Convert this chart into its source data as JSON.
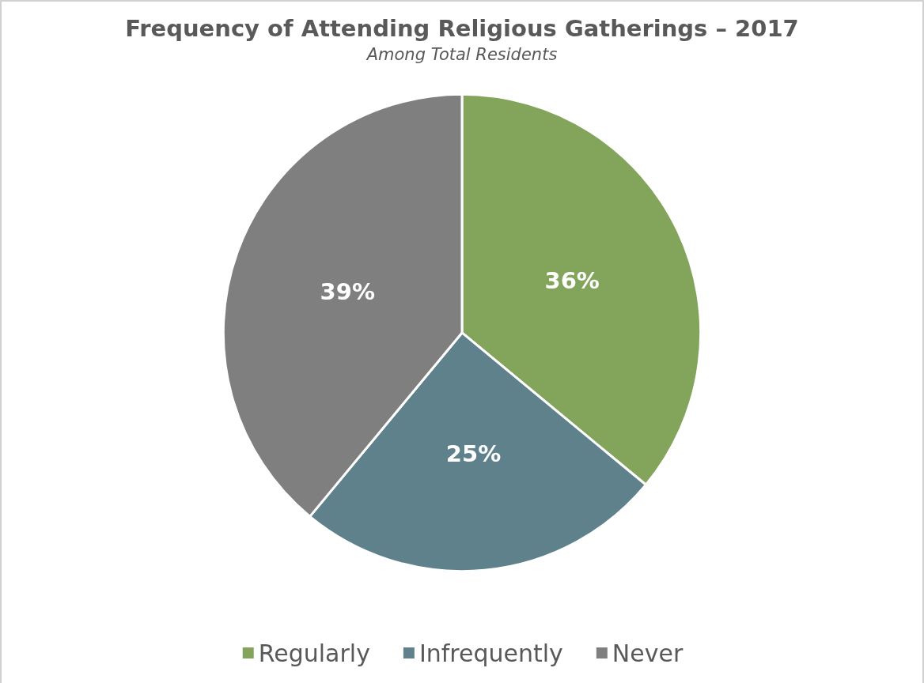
{
  "chart_data": {
    "type": "pie",
    "title": "Frequency of Attending Religious Gatherings – 2017",
    "subtitle": "Among Total Residents",
    "categories": [
      "Regularly",
      "Infrequently",
      "Never"
    ],
    "values": [
      36,
      25,
      39
    ],
    "colors": [
      "#83a45b",
      "#5e818c",
      "#7f7f7f"
    ],
    "value_labels": [
      "36%",
      "25%",
      "39%"
    ],
    "legend": "bottom"
  }
}
